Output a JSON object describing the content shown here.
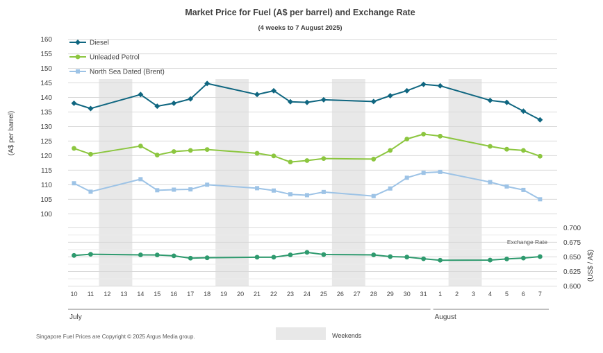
{
  "chart_data": {
    "type": "line",
    "title": "Market Price for Fuel (A$ per barrel) and Exchange Rate",
    "subtitle": "(4 weeks to 7 August 2025)",
    "ylabel_left": "(A$ per barrel)",
    "ylabel_right": "(US$ / A$)",
    "ylim_left": [
      100,
      160
    ],
    "yticks_left": [
      "160",
      "155",
      "150",
      "145",
      "140",
      "135",
      "130",
      "125",
      "120",
      "115",
      "110",
      "105",
      "100"
    ],
    "ylim_right": [
      0.6,
      0.7
    ],
    "yticks_right": [
      "0.700",
      "0.675",
      "0.650",
      "0.625",
      "0.600"
    ],
    "categories": [
      "10",
      "11",
      "12",
      "13",
      "14",
      "15",
      "16",
      "17",
      "18",
      "19",
      "20",
      "21",
      "22",
      "23",
      "24",
      "25",
      "26",
      "27",
      "28",
      "29",
      "30",
      "31",
      "1",
      "2",
      "3",
      "4",
      "5",
      "6",
      "7"
    ],
    "months": [
      {
        "label": "July"
      },
      {
        "label": "August"
      }
    ],
    "weekend_pairs": [
      [
        "12",
        "13"
      ],
      [
        "19",
        "20"
      ],
      [
        "26",
        "27"
      ],
      [
        "2",
        "3"
      ]
    ],
    "series": [
      {
        "name": "Diesel",
        "color": "#0f6680",
        "marker": "diamond",
        "values": [
          138,
          136.2,
          null,
          null,
          141,
          137,
          138,
          139.5,
          144.8,
          null,
          null,
          141,
          142.3,
          138.5,
          138.3,
          139.2,
          null,
          null,
          138.6,
          140.6,
          142.3,
          144.5,
          144,
          null,
          null,
          139,
          138.3,
          135.3,
          132.3
        ]
      },
      {
        "name": "Unleaded Petrol",
        "color": "#8cc63f",
        "marker": "circle",
        "values": [
          122.5,
          120.5,
          null,
          null,
          123.3,
          120.2,
          121.4,
          121.8,
          122.1,
          null,
          null,
          120.8,
          119.9,
          117.8,
          118.3,
          119,
          null,
          null,
          118.8,
          121.8,
          125.7,
          127.4,
          126.7,
          null,
          null,
          123.2,
          122.2,
          121.8,
          119.8
        ]
      },
      {
        "name": "North Sea Dated (Brent)",
        "color": "#9dc3e6",
        "marker": "square",
        "values": [
          110.5,
          107.6,
          null,
          null,
          111.9,
          108.1,
          108.3,
          108.4,
          110,
          null,
          null,
          108.8,
          108,
          106.7,
          106.4,
          107.5,
          null,
          null,
          106.1,
          108.7,
          112.4,
          114.1,
          114.4,
          null,
          null,
          110.9,
          109.4,
          108.2,
          105
        ]
      },
      {
        "name": "Exchange Rate",
        "color": "#2e9a6e",
        "marker": "circle",
        "axis": "right",
        "values": [
          0.6525,
          0.6545,
          null,
          null,
          0.6535,
          0.6533,
          0.6518,
          0.6478,
          0.6485,
          null,
          null,
          0.6495,
          0.6495,
          0.6535,
          0.6578,
          0.654,
          null,
          null,
          0.6535,
          0.6505,
          0.6497,
          0.6468,
          0.6443,
          null,
          null,
          0.6445,
          0.6465,
          0.648,
          0.6505
        ]
      }
    ],
    "exchange_label": "Exchange Rate",
    "legend_position": "top-left",
    "grid": true
  },
  "footer": {
    "copyright": "Singapore Fuel Prices are Copyright © 2025 Argus Media group.",
    "weekend_label": "Weekends",
    "weekend_color": "#e8e8e8"
  }
}
